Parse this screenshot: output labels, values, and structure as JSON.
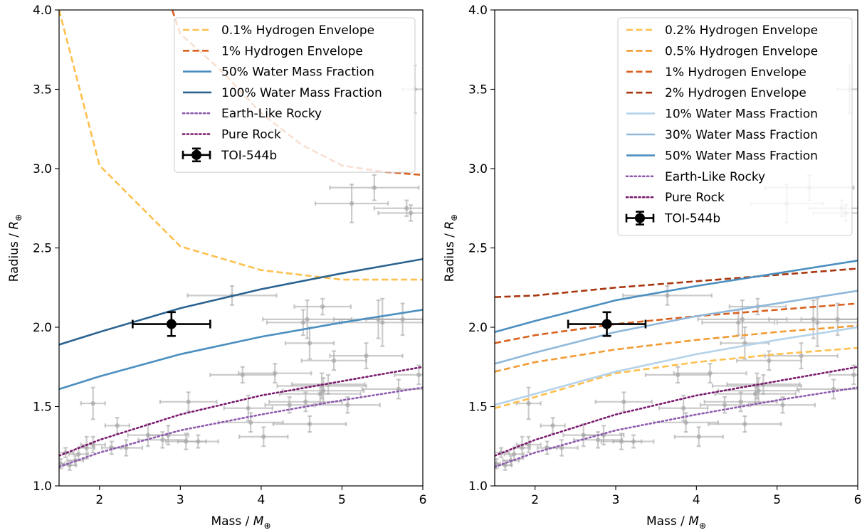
{
  "chart_data": [
    {
      "type": "line",
      "xlabel": "Mass / ",
      "xlabel_symbol": "M",
      "xlabel_sub": "⊕",
      "ylabel": "Radius / ",
      "ylabel_symbol": "R",
      "ylabel_sub": "⊕",
      "xlim": [
        1.5,
        6
      ],
      "ylim": [
        1.0,
        4.0
      ],
      "x_ticks": [
        2,
        3,
        4,
        5,
        6
      ],
      "x_tick_labels": [
        "2",
        "3",
        "4",
        "5",
        "6"
      ],
      "y_ticks": [
        1.0,
        1.5,
        2.0,
        2.5,
        3.0,
        3.5,
        4.0
      ],
      "y_tick_labels": [
        "1.0",
        "1.5",
        "2.0",
        "2.5",
        "3.0",
        "3.5",
        "4.0"
      ],
      "grid": false,
      "legend_position": "top-right",
      "series": [
        {
          "name": "0.1% Hydrogen Envelope",
          "style": "dashed",
          "color": "#FDC04D",
          "x": [
            1.5,
            2.0,
            3.0,
            4.0,
            5.0,
            6.0
          ],
          "y": [
            4.0,
            3.02,
            2.51,
            2.36,
            2.3,
            2.3
          ]
        },
        {
          "name": "1% Hydrogen Envelope",
          "style": "dashed",
          "color": "#D9611F",
          "x": [
            2.9,
            3.0,
            3.5,
            4.0,
            4.5,
            5.0,
            5.5,
            6.0
          ],
          "y": [
            4.0,
            3.85,
            3.62,
            3.35,
            3.15,
            3.02,
            2.98,
            2.96
          ]
        },
        {
          "name": "50% Water Mass Fraction",
          "style": "solid",
          "color": "#4A8FC0",
          "x": [
            1.5,
            2.0,
            3.0,
            4.0,
            5.0,
            6.0
          ],
          "y": [
            1.61,
            1.69,
            1.83,
            1.94,
            2.03,
            2.11
          ]
        },
        {
          "name": "100% Water Mass Fraction",
          "style": "solid",
          "color": "#2A6290",
          "x": [
            1.5,
            2.0,
            3.0,
            4.0,
            5.0,
            6.0
          ],
          "y": [
            1.89,
            1.97,
            2.12,
            2.24,
            2.34,
            2.43
          ]
        },
        {
          "name": "Earth-Like Rocky",
          "style": "dotted",
          "color": "#8E5BAF",
          "x": [
            1.5,
            2.0,
            3.0,
            4.0,
            5.0,
            6.0
          ],
          "y": [
            1.12,
            1.21,
            1.35,
            1.45,
            1.54,
            1.62
          ]
        },
        {
          "name": "Pure Rock",
          "style": "dotted",
          "color": "#7A1A6E",
          "x": [
            1.5,
            2.0,
            3.0,
            4.0,
            5.0,
            6.0
          ],
          "y": [
            1.19,
            1.29,
            1.45,
            1.57,
            1.66,
            1.75
          ]
        }
      ],
      "highlight_point": {
        "name": "TOI-544b",
        "x": 2.89,
        "y": 2.02,
        "xerr": 0.48,
        "yerr": 0.075
      }
    },
    {
      "type": "line",
      "xlabel": "Mass / ",
      "xlabel_symbol": "M",
      "xlabel_sub": "⊕",
      "ylabel": "Radius / ",
      "ylabel_symbol": "R",
      "ylabel_sub": "⊕",
      "xlim": [
        1.5,
        6
      ],
      "ylim": [
        1.0,
        4.0
      ],
      "x_ticks": [
        2,
        3,
        4,
        5,
        6
      ],
      "x_tick_labels": [
        "2",
        "3",
        "4",
        "5",
        "6"
      ],
      "y_ticks": [
        1.0,
        1.5,
        2.0,
        2.5,
        3.0,
        3.5,
        4.0
      ],
      "y_tick_labels": [
        "1.0",
        "1.5",
        "2.0",
        "2.5",
        "3.0",
        "3.5",
        "4.0"
      ],
      "grid": false,
      "legend_position": "top-right",
      "series": [
        {
          "name": "0.2% Hydrogen Envelope",
          "style": "dashed",
          "color": "#FDC04D",
          "x": [
            1.5,
            2.0,
            3.0,
            4.0,
            5.0,
            6.0
          ],
          "y": [
            1.49,
            1.56,
            1.71,
            1.78,
            1.83,
            1.87
          ]
        },
        {
          "name": "0.5% Hydrogen Envelope",
          "style": "dashed",
          "color": "#F29B33",
          "x": [
            1.5,
            2.0,
            3.0,
            4.0,
            5.0,
            6.0
          ],
          "y": [
            1.72,
            1.78,
            1.86,
            1.92,
            1.97,
            2.01
          ]
        },
        {
          "name": "1% Hydrogen Envelope",
          "style": "dashed",
          "color": "#D9611F",
          "x": [
            1.5,
            2.0,
            3.0,
            4.0,
            5.0,
            6.0
          ],
          "y": [
            1.9,
            1.95,
            2.02,
            2.07,
            2.11,
            2.15
          ]
        },
        {
          "name": "2% Hydrogen Envelope",
          "style": "dashed",
          "color": "#A8360E",
          "x": [
            1.5,
            2.0,
            3.0,
            4.0,
            5.0,
            6.0
          ],
          "y": [
            2.19,
            2.2,
            2.25,
            2.29,
            2.33,
            2.37
          ]
        },
        {
          "name": "10% Water Mass Fraction",
          "style": "solid",
          "color": "#B5D3EA",
          "x": [
            1.5,
            2.0,
            3.0,
            4.0,
            5.0,
            6.0
          ],
          "y": [
            1.51,
            1.58,
            1.72,
            1.83,
            1.92,
            2.0
          ]
        },
        {
          "name": "30% Water Mass Fraction",
          "style": "solid",
          "color": "#8FB8DA",
          "x": [
            1.5,
            2.0,
            3.0,
            4.0,
            5.0,
            6.0
          ],
          "y": [
            1.77,
            1.84,
            1.97,
            2.07,
            2.15,
            2.23
          ]
        },
        {
          "name": "50% Water Mass Fraction",
          "style": "solid",
          "color": "#4A8FC0",
          "x": [
            1.5,
            2.0,
            3.0,
            4.0,
            5.0,
            6.0
          ],
          "y": [
            1.97,
            2.04,
            2.17,
            2.26,
            2.34,
            2.42
          ]
        },
        {
          "name": "Earth-Like Rocky",
          "style": "dotted",
          "color": "#8E5BAF",
          "x": [
            1.5,
            2.0,
            3.0,
            4.0,
            5.0,
            6.0
          ],
          "y": [
            1.12,
            1.21,
            1.35,
            1.45,
            1.54,
            1.62
          ]
        },
        {
          "name": "Pure Rock",
          "style": "dotted",
          "color": "#7A1A6E",
          "x": [
            1.5,
            2.0,
            3.0,
            4.0,
            5.0,
            6.0
          ],
          "y": [
            1.19,
            1.29,
            1.45,
            1.57,
            1.66,
            1.75
          ]
        }
      ],
      "highlight_point": {
        "name": "TOI-544b",
        "x": 2.89,
        "y": 2.02,
        "xerr": 0.48,
        "yerr": 0.075
      }
    }
  ],
  "background_planets": {
    "color": "#A8A8A8",
    "points": [
      {
        "x": 1.52,
        "y": 1.14,
        "xerr": 0.05,
        "yerr": 0.03
      },
      {
        "x": 1.58,
        "y": 1.21,
        "xerr": 0.1,
        "yerr": 0.03
      },
      {
        "x": 1.63,
        "y": 1.13,
        "xerr": 0.08,
        "yerr": 0.03
      },
      {
        "x": 1.7,
        "y": 1.16,
        "xerr": 0.1,
        "yerr": 0.03
      },
      {
        "x": 1.74,
        "y": 1.2,
        "xerr": 0.12,
        "yerr": 0.04
      },
      {
        "x": 1.84,
        "y": 1.24,
        "xerr": 0.1,
        "yerr": 0.07
      },
      {
        "x": 1.92,
        "y": 1.26,
        "xerr": 0.15,
        "yerr": 0.05
      },
      {
        "x": 1.92,
        "y": 1.52,
        "xerr": 0.15,
        "yerr": 0.1
      },
      {
        "x": 2.15,
        "y": 1.24,
        "xerr": 0.12,
        "yerr": 0.04
      },
      {
        "x": 2.22,
        "y": 1.38,
        "xerr": 0.15,
        "yerr": 0.05
      },
      {
        "x": 2.33,
        "y": 1.24,
        "xerr": 0.2,
        "yerr": 0.05
      },
      {
        "x": 2.6,
        "y": 1.32,
        "xerr": 0.25,
        "yerr": 0.07
      },
      {
        "x": 2.78,
        "y": 1.29,
        "xerr": 0.3,
        "yerr": 0.05
      },
      {
        "x": 2.85,
        "y": 1.32,
        "xerr": 0.25,
        "yerr": 0.06
      },
      {
        "x": 3.07,
        "y": 1.28,
        "xerr": 0.25,
        "yerr": 0.05
      },
      {
        "x": 3.1,
        "y": 1.53,
        "xerr": 0.35,
        "yerr": 0.06
      },
      {
        "x": 3.22,
        "y": 1.28,
        "xerr": 0.25,
        "yerr": 0.04
      },
      {
        "x": 3.64,
        "y": 2.2,
        "xerr": 0.55,
        "yerr": 0.06
      },
      {
        "x": 3.77,
        "y": 1.7,
        "xerr": 0.4,
        "yerr": 0.05
      },
      {
        "x": 3.84,
        "y": 1.49,
        "xerr": 0.3,
        "yerr": 0.08
      },
      {
        "x": 3.87,
        "y": 1.4,
        "xerr": 0.4,
        "yerr": 0.06
      },
      {
        "x": 4.03,
        "y": 1.31,
        "xerr": 0.3,
        "yerr": 0.06
      },
      {
        "x": 4.17,
        "y": 1.71,
        "xerr": 0.45,
        "yerr": 0.06
      },
      {
        "x": 4.35,
        "y": 1.51,
        "xerr": 0.3,
        "yerr": 0.05
      },
      {
        "x": 4.52,
        "y": 2.03,
        "xerr": 0.45,
        "yerr": 0.08
      },
      {
        "x": 4.55,
        "y": 1.53,
        "xerr": 0.45,
        "yerr": 0.06
      },
      {
        "x": 4.57,
        "y": 2.05,
        "xerr": 0.55,
        "yerr": 0.12
      },
      {
        "x": 4.6,
        "y": 1.39,
        "xerr": 0.45,
        "yerr": 0.05
      },
      {
        "x": 4.6,
        "y": 1.9,
        "xerr": 0.3,
        "yerr": 0.1
      },
      {
        "x": 4.73,
        "y": 1.58,
        "xerr": 0.5,
        "yerr": 0.06
      },
      {
        "x": 4.75,
        "y": 1.63,
        "xerr": 0.55,
        "yerr": 0.08
      },
      {
        "x": 4.76,
        "y": 2.13,
        "xerr": 0.35,
        "yerr": 0.05
      },
      {
        "x": 4.77,
        "y": 1.6,
        "xerr": 0.5,
        "yerr": 0.08
      },
      {
        "x": 4.83,
        "y": 1.64,
        "xerr": 0.45,
        "yerr": 0.06
      },
      {
        "x": 4.9,
        "y": 1.79,
        "xerr": 0.4,
        "yerr": 0.06
      },
      {
        "x": 5.07,
        "y": 1.51,
        "xerr": 0.4,
        "yerr": 0.05
      },
      {
        "x": 5.12,
        "y": 2.78,
        "xerr": 0.45,
        "yerr": 0.12
      },
      {
        "x": 5.3,
        "y": 1.82,
        "xerr": 0.45,
        "yerr": 0.08
      },
      {
        "x": 5.4,
        "y": 2.88,
        "xerr": 0.55,
        "yerr": 0.08
      },
      {
        "x": 5.45,
        "y": 2.05,
        "xerr": 0.55,
        "yerr": 0.12
      },
      {
        "x": 5.5,
        "y": 2.03,
        "xerr": 0.5,
        "yerr": 0.15
      },
      {
        "x": 5.7,
        "y": 1.61,
        "xerr": 0.45,
        "yerr": 0.06
      },
      {
        "x": 5.75,
        "y": 2.05,
        "xerr": 0.45,
        "yerr": 0.1
      },
      {
        "x": 5.8,
        "y": 2.75,
        "xerr": 0.4,
        "yerr": 0.05
      },
      {
        "x": 5.85,
        "y": 2.72,
        "xerr": 0.4,
        "yerr": 0.05
      },
      {
        "x": 5.9,
        "y": 3.5,
        "xerr": 0.15,
        "yerr": 0.15
      },
      {
        "x": 5.95,
        "y": 1.7,
        "xerr": 0.3,
        "yerr": 0.06
      }
    ]
  }
}
